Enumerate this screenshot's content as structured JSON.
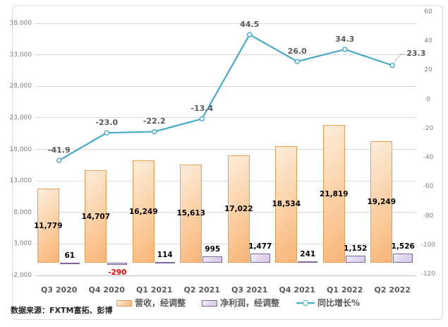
{
  "source_note": "数据来源：FXTM富拓、彭博",
  "chart_data": {
    "type": "combo",
    "title": "",
    "categories": [
      "Q3 2020",
      "Q4 2020",
      "Q1 2021",
      "Q2 2021",
      "Q3 2021",
      "Q4 2021",
      "Q1 2022",
      "Q2 2022"
    ],
    "series": [
      {
        "id": "revenue",
        "name": "营收，经调整",
        "type": "bar",
        "axis": "left",
        "values": [
          11779,
          14707,
          16249,
          15613,
          17022,
          18534,
          21819,
          19249
        ],
        "labels": [
          "11,779",
          "14,707",
          "16,249",
          "15,613",
          "17,022",
          "18,534",
          "21,819",
          "19,249"
        ],
        "border_color": "#ef9b52",
        "fill_light": "#fdeedd",
        "fill_dark": "#f8b577",
        "label_color": "#000000"
      },
      {
        "id": "net-profit",
        "name": "净利润，经调整",
        "type": "bar",
        "axis": "left",
        "values": [
          61,
          -290,
          114,
          995,
          1477,
          241,
          1152,
          1526
        ],
        "labels": [
          "61",
          "-290",
          "114",
          "995",
          "1,477",
          "241",
          "1,152",
          "1,526"
        ],
        "border_color": "#8064a2",
        "fill_light": "#f3eef8",
        "fill_dark": "#d5c7e6",
        "label_color": "#000000",
        "negative_label_color": "#ff0000"
      },
      {
        "id": "yoy-growth",
        "name": "同比增长%",
        "type": "line",
        "axis": "right",
        "values": [
          -41.9,
          -23.0,
          -22.2,
          -13.4,
          44.5,
          26.0,
          34.3,
          23.3
        ],
        "labels": [
          "-41.9",
          "-23.0",
          "-22.2",
          "-13.4",
          "44.5",
          "26.0",
          "34.3",
          "23.3"
        ],
        "color": "#45abcb",
        "marker_fill": "#ffffff",
        "label_color": "#595959"
      }
    ],
    "left_axis": {
      "min": -2000,
      "max": 38000,
      "step": 5000,
      "ticks": [
        "38,000",
        "33,000",
        "28,000",
        "23,000",
        "18,000",
        "13,000",
        "8,000",
        "3,000",
        "-2,000"
      ]
    },
    "right_axis": {
      "min": -120,
      "max": 60,
      "step": 20,
      "ticks": [
        "60",
        "40",
        "20",
        "0",
        "-20",
        "-40",
        "-60",
        "-80",
        "-100",
        "-120"
      ]
    },
    "legend_position": "bottom",
    "grid": true,
    "colors": {
      "gridline": "#d9d9d9",
      "axis_text": "#7f7f7f",
      "category_text": "#595959",
      "frame_border": "#d9d9d9"
    }
  }
}
